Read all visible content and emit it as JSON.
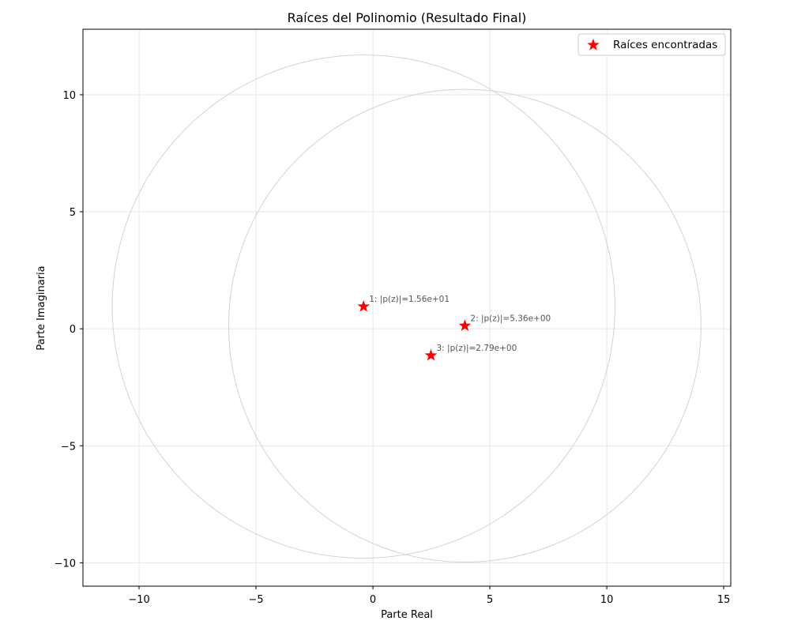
{
  "chart_data": {
    "type": "scatter",
    "title": "Raíces del Polinomio (Resultado Final)",
    "xlabel": "Parte Real",
    "ylabel": "Parte Imaginaria",
    "xlim": [
      -12.4,
      15.3
    ],
    "ylim": [
      -11.0,
      12.8
    ],
    "xticks": [
      -10,
      -5,
      0,
      5,
      10,
      15
    ],
    "yticks": [
      -10,
      -5,
      0,
      5,
      10
    ],
    "grid": true,
    "legend_position": "top-right",
    "series": [
      {
        "name": "Raíces encontradas",
        "marker": "star",
        "color": "#ff0000",
        "points": [
          {
            "x": -0.4,
            "y": 0.95
          },
          {
            "x": 3.93,
            "y": 0.13
          },
          {
            "x": 2.48,
            "y": -1.14
          }
        ]
      }
    ],
    "annotations": [
      {
        "text": "1: |p(z)|=1.56e+01",
        "x": -0.4,
        "y": 0.95
      },
      {
        "text": "2: |p(z)|=5.36e+00",
        "x": 3.93,
        "y": 0.13
      },
      {
        "text": "3: |p(z)|=2.79e+00",
        "x": 2.48,
        "y": -1.14
      }
    ],
    "circles": [
      {
        "cx": -0.4,
        "cy": 0.95,
        "r": 10.75
      },
      {
        "cx": 3.93,
        "cy": 0.13,
        "r": 10.1
      }
    ],
    "colors": {
      "marker": "#ff0000",
      "circle": "#d3d3d3",
      "grid": "#e6e6e6",
      "annotation": "#555555"
    }
  }
}
